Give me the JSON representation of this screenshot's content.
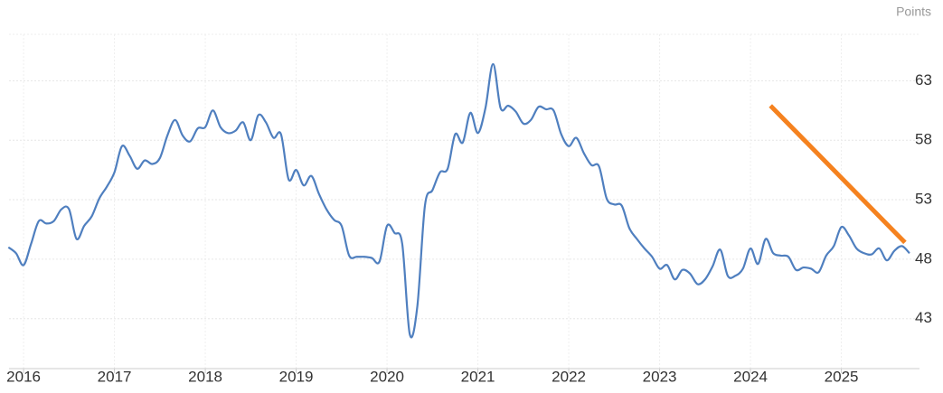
{
  "chart_data": {
    "type": "line",
    "unit_label": "Points",
    "x": [
      2015.833,
      2015.917,
      2016,
      2016.083,
      2016.167,
      2016.25,
      2016.333,
      2016.417,
      2016.5,
      2016.583,
      2016.667,
      2016.75,
      2016.833,
      2016.917,
      2017,
      2017.083,
      2017.167,
      2017.25,
      2017.333,
      2017.417,
      2017.5,
      2017.583,
      2017.667,
      2017.75,
      2017.833,
      2017.917,
      2018,
      2018.083,
      2018.167,
      2018.25,
      2018.333,
      2018.417,
      2018.5,
      2018.583,
      2018.667,
      2018.75,
      2018.833,
      2018.917,
      2019,
      2019.083,
      2019.167,
      2019.25,
      2019.333,
      2019.417,
      2019.5,
      2019.583,
      2019.667,
      2019.75,
      2019.833,
      2019.917,
      2020,
      2020.083,
      2020.167,
      2020.25,
      2020.333,
      2020.417,
      2020.5,
      2020.583,
      2020.667,
      2020.75,
      2020.833,
      2020.917,
      2021,
      2021.083,
      2021.167,
      2021.25,
      2021.333,
      2021.417,
      2021.5,
      2021.583,
      2021.667,
      2021.75,
      2021.833,
      2021.917,
      2022,
      2022.083,
      2022.167,
      2022.25,
      2022.333,
      2022.417,
      2022.5,
      2022.583,
      2022.667,
      2022.75,
      2022.833,
      2022.917,
      2023,
      2023.083,
      2023.167,
      2023.25,
      2023.333,
      2023.417,
      2023.5,
      2023.583,
      2023.667,
      2023.75,
      2023.833,
      2023.917,
      2024,
      2024.083,
      2024.167,
      2024.25,
      2024.333,
      2024.417,
      2024.5,
      2024.583,
      2024.667,
      2024.75,
      2024.833,
      2024.917,
      2025,
      2025.083,
      2025.167,
      2025.25,
      2025.333,
      2025.417,
      2025.5,
      2025.583,
      2025.667,
      2025.75
    ],
    "series": [
      {
        "color": "#4f7fbf",
        "values": [
          49.0,
          48.5,
          47.5,
          49.3,
          51.2,
          51.0,
          51.2,
          52.2,
          52.2,
          49.7,
          50.8,
          51.6,
          53.1,
          54.1,
          55.3,
          57.5,
          56.7,
          55.6,
          56.3,
          56.0,
          56.5,
          58.4,
          59.7,
          58.4,
          57.9,
          59.0,
          59.1,
          60.5,
          59.1,
          58.6,
          58.8,
          59.5,
          58.0,
          60.1,
          59.5,
          58.2,
          58.5,
          54.7,
          55.5,
          54.2,
          55.0,
          53.5,
          52.2,
          51.3,
          50.8,
          48.3,
          48.2,
          48.2,
          48.1,
          47.8,
          50.8,
          50.2,
          49.3,
          41.7,
          44.0,
          52.5,
          53.8,
          55.3,
          55.6,
          58.5,
          57.8,
          60.3,
          58.6,
          60.7,
          64.4,
          60.7,
          60.9,
          60.4,
          59.4,
          59.7,
          60.8,
          60.6,
          60.5,
          58.5,
          57.5,
          58.2,
          56.9,
          55.9,
          55.8,
          53.1,
          52.6,
          52.5,
          50.6,
          49.7,
          48.9,
          48.2,
          47.2,
          47.5,
          46.3,
          47.1,
          46.8,
          45.9,
          46.3,
          47.4,
          48.8,
          46.6,
          46.6,
          47.2,
          48.9,
          47.6,
          49.7,
          48.5,
          48.3,
          48.2,
          47.1,
          47.3,
          47.2,
          46.9,
          48.3,
          49.1,
          50.7,
          50.0,
          48.9,
          48.5,
          48.4,
          48.9,
          47.9,
          48.7,
          49.1,
          48.5
        ]
      }
    ],
    "trend_line": {
      "color": "#f5821f",
      "x": [
        2024.22,
        2025.7
      ],
      "values": [
        60.9,
        49.4
      ]
    },
    "xlim": [
      2015.84,
      2025.86
    ],
    "xticks": [
      2016,
      2017,
      2018,
      2019,
      2020,
      2021,
      2022,
      2023,
      2024,
      2025
    ],
    "ylim": [
      38.8,
      66.9
    ],
    "yticks": [
      43,
      48,
      53,
      58,
      63
    ],
    "grid": true
  }
}
